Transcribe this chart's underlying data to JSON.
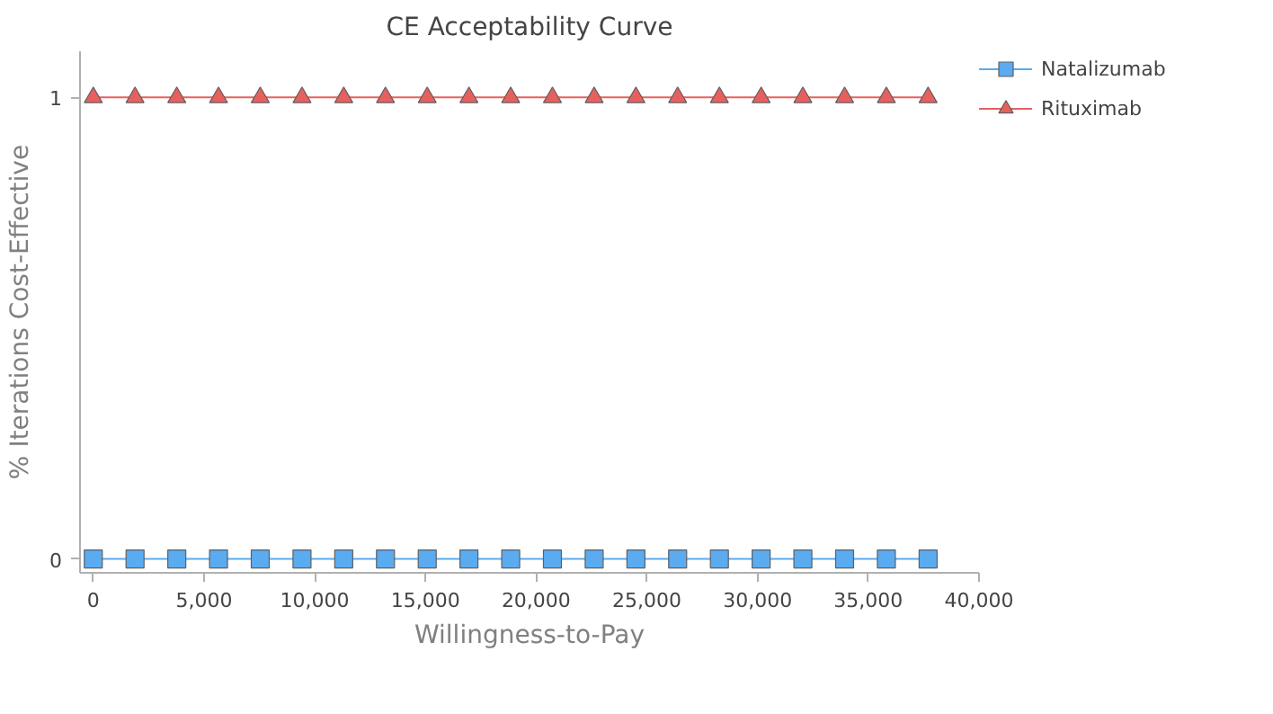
{
  "chart_data": {
    "type": "line",
    "title": "CE Acceptability Curve",
    "xlabel": "Willingness-to-Pay",
    "ylabel": "% Iterations Cost-Effective",
    "x": [
      0,
      1885,
      3770,
      5655,
      7540,
      9425,
      11310,
      13195,
      15080,
      16965,
      18850,
      20735,
      22620,
      24505,
      26390,
      28275,
      30160,
      32045,
      33930,
      35815,
      37700
    ],
    "series": [
      {
        "name": "Natalizumab",
        "color": "#5aabf0",
        "marker": "square",
        "values": [
          0,
          0,
          0,
          0,
          0,
          0,
          0,
          0,
          0,
          0,
          0,
          0,
          0,
          0,
          0,
          0,
          0,
          0,
          0,
          0,
          0
        ]
      },
      {
        "name": "Rituximab",
        "color": "#e8605e",
        "marker": "triangle",
        "values": [
          1,
          1,
          1,
          1,
          1,
          1,
          1,
          1,
          1,
          1,
          1,
          1,
          1,
          1,
          1,
          1,
          1,
          1,
          1,
          1,
          1
        ]
      }
    ],
    "xlim": [
      -600,
      40000
    ],
    "ylim": [
      -0.03,
      1.1
    ],
    "xticks": [
      0,
      {
        "value": 5000,
        "label": "5,000"
      },
      {
        "value": 10000,
        "label": "10,000"
      },
      {
        "value": 15000,
        "label": "15,000"
      },
      {
        "value": 20000,
        "label": "20,000"
      },
      {
        "value": 25000,
        "label": "25,000"
      },
      {
        "value": 30000,
        "label": "30,000"
      },
      {
        "value": 35000,
        "label": "35,000"
      },
      {
        "value": 40000,
        "label": "40,000"
      }
    ],
    "yticks": [
      0,
      1
    ],
    "grid": false,
    "legend": "top right"
  }
}
